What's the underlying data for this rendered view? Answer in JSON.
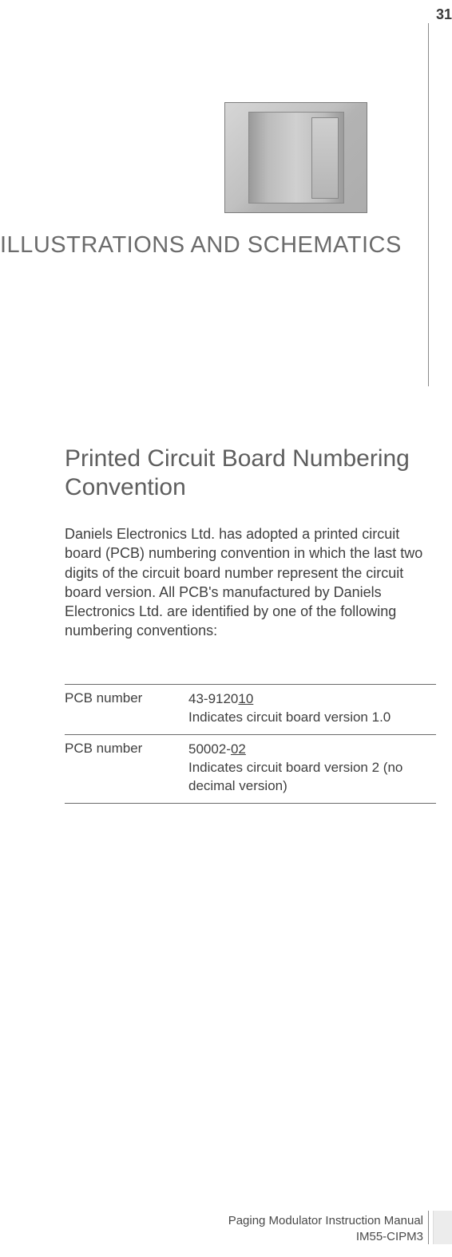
{
  "page_number": "31",
  "chapter_title": "ILLUSTRATIONS AND SCHEMATICS",
  "section_title": "Printed Circuit Board Numbering Convention",
  "intro_paragraph": "Daniels Electronics Ltd. has adopted a printed circuit board (PCB) numbering convention in which the last two digits of the circuit board number represent the circuit board version. All PCB's manufactured by Daniels Electronics Ltd. are identified by one of the following numbering conventions:",
  "table": {
    "rows": [
      {
        "label": "PCB number",
        "value_prefix": "43-9120",
        "value_ul": "10",
        "desc": "Indicates circuit board version 1.0"
      },
      {
        "label": "PCB number",
        "value_prefix": "50002-",
        "value_ul": "02",
        "desc": "Indicates circuit board version 2 (no decimal version)"
      }
    ]
  },
  "footer": {
    "line1": "Paging Modulator Instruction Manual",
    "line2": "IM55-CIPM3"
  },
  "colors": {
    "text": "#4a4a4a",
    "heading": "#6b6b6b",
    "rule": "#8a8a8a"
  }
}
